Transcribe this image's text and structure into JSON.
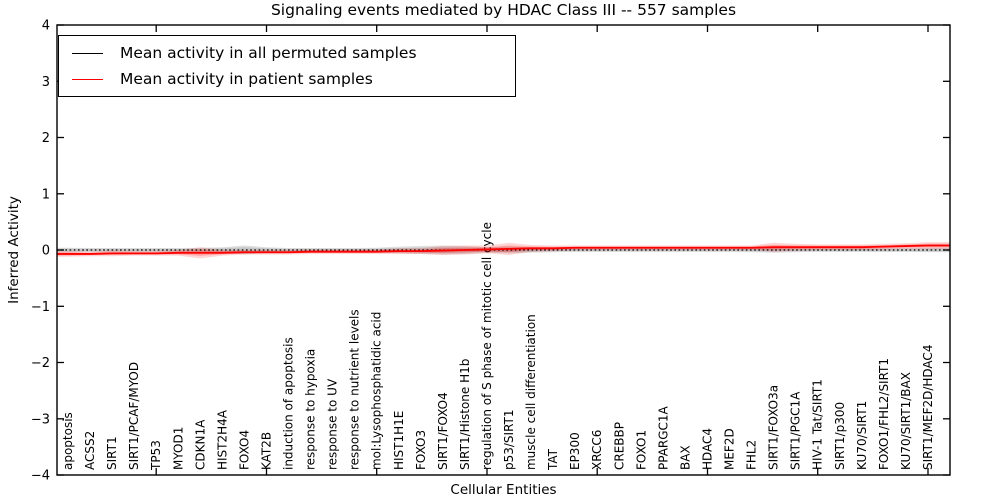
{
  "chart_data": {
    "type": "line",
    "title": "Signaling events mediated by HDAC Class III -- 557 samples",
    "xlabel": "Cellular Entities",
    "ylabel": "Inferred Activity",
    "ylim": [
      -4,
      4
    ],
    "yticks": [
      4,
      3,
      2,
      1,
      0,
      -1,
      -2,
      -3,
      -4
    ],
    "xtick_indices": [
      4,
      9,
      14,
      19,
      24,
      29,
      34,
      39
    ],
    "grid": false,
    "legend_position": "upper left",
    "legend": {
      "entries": [
        {
          "label": "Mean activity in all permuted samples",
          "color": "#000000"
        },
        {
          "label": "Mean activity in patient samples",
          "color": "#ff0000"
        }
      ]
    },
    "categories": [
      "apoptosis",
      "ACSS2",
      "SIRT1",
      "SIRT1/PCAF/MYOD",
      "TP53",
      "MYOD1",
      "CDKN1A",
      "HIST2H4A",
      "FOXO4",
      "KAT2B",
      "induction of apoptosis",
      "response to hypoxia",
      "response to UV",
      "response to nutrient levels",
      "mol:Lysophosphatidic acid",
      "HIST1H1E",
      "FOXO3",
      "SIRT1/FOXO4",
      "SIRT1/Histone H1b",
      "regulation of S phase of mitotic cell cycle",
      "p53/SIRT1",
      "muscle cell differentiation",
      "TAT",
      "EP300",
      "XRCC6",
      "CREBBP",
      "FOXO1",
      "PPARGC1A",
      "BAX",
      "HDAC4",
      "MEF2D",
      "FHL2",
      "SIRT1/FOXO3a",
      "SIRT1/PGC1A",
      "HIV-1 Tat/SIRT1",
      "SIRT1/p300",
      "KU70/SIRT1",
      "FOXO1/FHL2/SIRT1",
      "KU70/SIRT1/BAX",
      "SIRT1/MEF2D/HDAC4"
    ],
    "series": [
      {
        "name": "Mean activity in all permuted samples",
        "color": "#000000",
        "line_style": "dotted",
        "band_color": "#000000",
        "values": [
          0,
          0,
          0,
          0,
          0,
          0,
          0,
          0,
          0,
          0,
          0,
          0,
          0,
          0,
          0,
          0,
          0,
          0,
          0,
          0,
          0,
          0,
          0,
          0,
          0,
          0,
          0,
          0,
          0,
          0,
          0,
          0,
          0,
          0,
          0,
          0,
          0,
          0,
          0,
          0
        ],
        "band_halfwidth": [
          0.04,
          0.035,
          0.035,
          0.035,
          0.035,
          0.035,
          0.04,
          0.05,
          0.08,
          0.05,
          0.035,
          0.035,
          0.035,
          0.035,
          0.04,
          0.06,
          0.07,
          0.08,
          0.07,
          0.05,
          0.06,
          0.05,
          0.04,
          0.035,
          0.035,
          0.035,
          0.035,
          0.035,
          0.035,
          0.035,
          0.035,
          0.04,
          0.05,
          0.04,
          0.035,
          0.035,
          0.035,
          0.035,
          0.035,
          0.04
        ]
      },
      {
        "name": "Mean activity in patient samples",
        "color": "#ff0000",
        "line_style": "solid",
        "band_color": "#ff0000",
        "values": [
          -0.07,
          -0.07,
          -0.06,
          -0.06,
          -0.06,
          -0.05,
          -0.05,
          -0.05,
          -0.04,
          -0.04,
          -0.04,
          -0.03,
          -0.03,
          -0.03,
          -0.03,
          -0.02,
          -0.02,
          -0.01,
          0.0,
          0.01,
          0.02,
          0.03,
          0.03,
          0.04,
          0.04,
          0.04,
          0.04,
          0.04,
          0.04,
          0.04,
          0.04,
          0.04,
          0.05,
          0.05,
          0.05,
          0.05,
          0.05,
          0.06,
          0.07,
          0.08
        ],
        "band_halfwidth": [
          0.05,
          0.04,
          0.05,
          0.04,
          0.04,
          0.05,
          0.1,
          0.05,
          0.04,
          0.04,
          0.04,
          0.04,
          0.04,
          0.04,
          0.04,
          0.05,
          0.05,
          0.08,
          0.08,
          0.07,
          0.11,
          0.06,
          0.05,
          0.04,
          0.04,
          0.04,
          0.04,
          0.04,
          0.04,
          0.04,
          0.04,
          0.04,
          0.08,
          0.06,
          0.05,
          0.05,
          0.05,
          0.05,
          0.05,
          0.06
        ]
      }
    ]
  }
}
